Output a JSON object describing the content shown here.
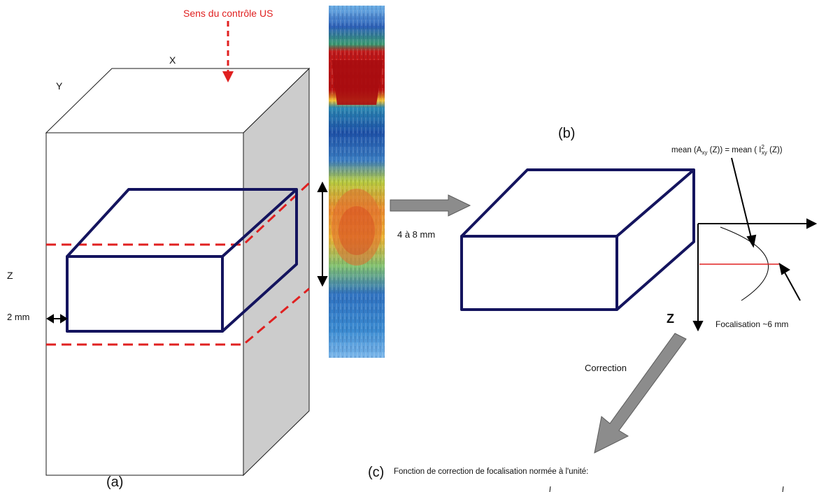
{
  "labels": {
    "us_direction": "Sens du contrôle US",
    "axis_x": "X",
    "axis_y": "Y",
    "axis_z": "Z",
    "thickness": "2 mm",
    "depth_range": "4 à 8 mm",
    "panel_a": "(a)",
    "panel_b": "(b)",
    "panel_c_letter": "(c)",
    "panel_c_text": "Fonction de correction de focalisation normée à l'unité:",
    "correction": "Correction",
    "focalisation": "Focalisation ~6 mm",
    "focus_z": "Z",
    "formula": {
      "part1": "mean (A",
      "sub1": "xy",
      "part2": " (Z)) = mean ( I",
      "sup2": "2",
      "sub2": "xy",
      "part3": " (Z))"
    }
  },
  "colors": {
    "outline": "#1a1a1a",
    "slab": "#14145e",
    "dashed_red": "#e02020",
    "side_face": "#cccccc",
    "arrow_grey": "#8c8c8c",
    "focus_line": "#e02020"
  }
}
